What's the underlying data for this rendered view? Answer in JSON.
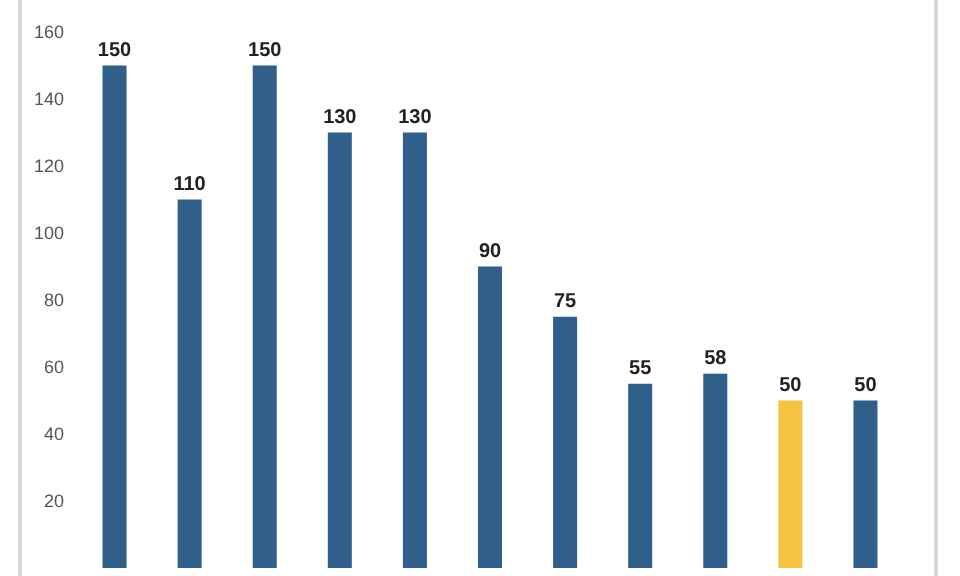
{
  "chart_data": {
    "type": "bar",
    "categories": [
      null,
      null,
      null,
      null,
      null,
      null,
      null,
      null,
      null,
      null,
      null
    ],
    "values": [
      150,
      110,
      150,
      130,
      130,
      90,
      75,
      55,
      58,
      50,
      50
    ],
    "colors": [
      "#2f5f8a",
      "#2f5f8a",
      "#2f5f8a",
      "#2f5f8a",
      "#2f5f8a",
      "#2f5f8a",
      "#2f5f8a",
      "#2f5f8a",
      "#2f5f8a",
      "#f5c342",
      "#2f5f8a"
    ],
    "ylim": [
      0,
      160
    ],
    "yticks": [
      20,
      40,
      60,
      80,
      100,
      120,
      140,
      160
    ],
    "data_labels": true,
    "grid": false
  }
}
